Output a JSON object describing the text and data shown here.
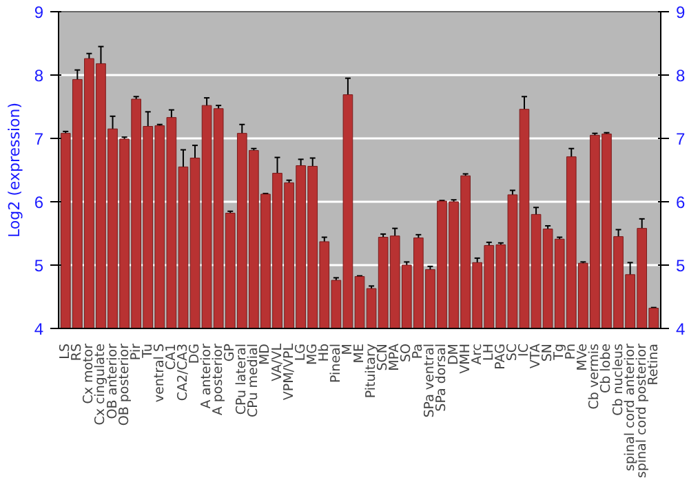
{
  "chart_data": {
    "type": "bar",
    "ylabel": "Log2 (expression)",
    "color": "#b83232",
    "categories": [
      "LS",
      "RS",
      "Cx motor",
      "Cx cingulate",
      "OB anterior",
      "OB posterior",
      "Pir",
      "Tu",
      "ventral S",
      "CA1",
      "CA2/CA3",
      "DG",
      "A anterior",
      "A posterior",
      "GP",
      "CPu lateral",
      "CPu medial",
      "MD",
      "VA/VL",
      "VPM/VPL",
      "LG",
      "MG",
      "Hb",
      "Pineal",
      "M",
      "ME",
      "Pituitary",
      "SCN",
      "MPA",
      "SO",
      "Pa",
      "SPa ventral",
      "SPa dorsal",
      "DM",
      "VMH",
      "Arc",
      "LH",
      "PAG",
      "SC",
      "IC",
      "VTA",
      "SN",
      "Tg",
      "Pn",
      "MVe",
      "Cb vermis",
      "Cb lobe",
      "Cb nucleus",
      "spinal cord anterior",
      "spinal cord posterior",
      "Retina"
    ],
    "values": [
      7.08,
      7.93,
      8.26,
      8.18,
      7.15,
      6.99,
      7.62,
      7.19,
      7.2,
      7.33,
      6.55,
      6.69,
      7.52,
      7.47,
      5.82,
      7.08,
      6.81,
      6.12,
      6.45,
      6.3,
      6.57,
      6.56,
      5.37,
      4.76,
      7.69,
      4.82,
      4.63,
      5.44,
      5.46,
      5.0,
      5.43,
      4.93,
      6.01,
      6.0,
      6.41,
      5.04,
      5.31,
      5.32,
      6.11,
      7.46,
      5.8,
      5.57,
      5.41,
      6.71,
      5.03,
      7.05,
      7.07,
      5.45,
      4.85,
      5.58,
      4.32
    ],
    "errors": [
      0.03,
      0.15,
      0.08,
      0.27,
      0.2,
      0.03,
      0.04,
      0.23,
      0.02,
      0.12,
      0.27,
      0.2,
      0.12,
      0.05,
      0.03,
      0.14,
      0.03,
      0.01,
      0.25,
      0.04,
      0.1,
      0.13,
      0.07,
      0.04,
      0.26,
      0.01,
      0.04,
      0.05,
      0.12,
      0.05,
      0.05,
      0.05,
      0.01,
      0.03,
      0.03,
      0.07,
      0.05,
      0.03,
      0.07,
      0.2,
      0.11,
      0.05,
      0.03,
      0.13,
      0.02,
      0.03,
      0.02,
      0.11,
      0.19,
      0.15,
      0.01
    ],
    "ylim": [
      4,
      9
    ],
    "yticks": [
      4,
      5,
      6,
      7,
      8,
      9
    ],
    "y2lim": [
      4,
      9
    ],
    "y2ticks": [
      4,
      5,
      6,
      7,
      8,
      9
    ],
    "grid": "y"
  }
}
